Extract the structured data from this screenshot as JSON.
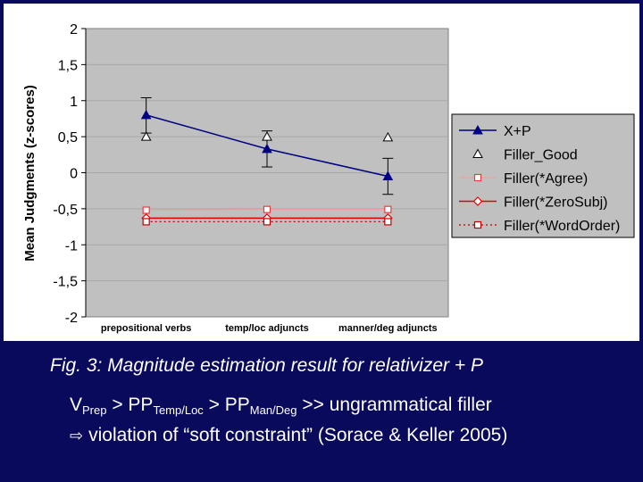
{
  "chart_data": {
    "type": "line",
    "categories": [
      "prepositional verbs",
      "temp/loc adjuncts",
      "manner/deg adjuncts"
    ],
    "ylabel": "Mean Judgments (z-scores)",
    "ylim": [
      -2,
      2
    ],
    "yticks": [
      "2",
      "1,5",
      "1",
      "0,5",
      "0",
      "-0,5",
      "-1",
      "-1,5",
      "-2"
    ],
    "ytick_values": [
      2,
      1.5,
      1,
      0.5,
      0,
      -0.5,
      -1,
      -1.5,
      -2
    ],
    "grid": true,
    "legend_position": "right",
    "series": [
      {
        "name": "X+P",
        "values": [
          0.8,
          0.33,
          -0.05
        ],
        "err_low": [
          0.55,
          0.08,
          -0.3
        ],
        "err_high": [
          1.04,
          0.58,
          0.2
        ],
        "color": "#000080",
        "marker": "triangle-filled",
        "line": "solid"
      },
      {
        "name": "Filler_Good",
        "values": [
          0.5,
          0.5,
          0.49
        ],
        "color": "#000000",
        "marker": "triangle-open",
        "line": "none"
      },
      {
        "name": "Filler(*Agree)",
        "values": [
          -0.52,
          -0.51,
          -0.51
        ],
        "color": "#e04040",
        "marker": "square-open",
        "line": "solid-light"
      },
      {
        "name": "Filler(*ZeroSubj)",
        "values": [
          -0.63,
          -0.63,
          -0.63
        ],
        "color": "#e00000",
        "marker": "diamond",
        "line": "solid"
      },
      {
        "name": "Filler(*WordOrder)",
        "values": [
          -0.68,
          -0.68,
          -0.68
        ],
        "color": "#c00000",
        "marker": "square-open",
        "line": "dotted"
      }
    ]
  },
  "caption": "Fig. 3:  Magnitude estimation result for relativizer + P",
  "subtitle": {
    "v": "V",
    "v_sub": "Prep",
    "gt1": " > PP",
    "pp1_sub": "Temp/Loc",
    "gt2": " > PP",
    "pp2_sub": "Man/Deg",
    "rest": " >> ungrammatical filler",
    "line2": "violation of “soft constraint” (Sorace & Keller 2005)",
    "arrow_icon": "right-arrow-outline-icon"
  }
}
